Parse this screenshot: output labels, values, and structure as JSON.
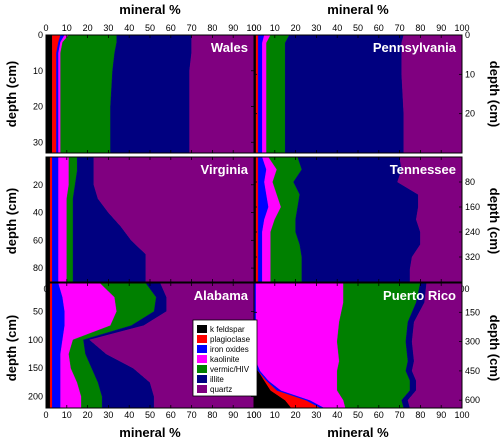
{
  "labels": {
    "mineral": "mineral %",
    "depth": "depth (cm)"
  },
  "chart_data": [
    {
      "type": "area",
      "title": "Wales",
      "xlabel": "mineral %",
      "ylabel": "depth (cm)",
      "xlim": [
        0,
        100
      ],
      "ylim": [
        33,
        0
      ],
      "x_ticks": [
        0,
        10,
        20,
        30,
        40,
        50,
        60,
        70,
        80,
        90,
        100
      ],
      "y_ticks": [
        0,
        10,
        20,
        30
      ],
      "depths": [
        0,
        2,
        5,
        10,
        20,
        30,
        33
      ],
      "series": [
        {
          "name": "k feldspar",
          "values": [
            3,
            3,
            3,
            3,
            3,
            3,
            3
          ]
        },
        {
          "name": "plagioclase",
          "values": [
            4,
            3,
            2,
            2,
            2,
            2,
            2
          ]
        },
        {
          "name": "iron oxides",
          "values": [
            2,
            1,
            1,
            1,
            1,
            1,
            1
          ]
        },
        {
          "name": "kaolinite",
          "values": [
            2,
            1,
            1,
            1,
            1,
            1,
            1
          ]
        },
        {
          "name": "vermic/HIV",
          "values": [
            23,
            26,
            26,
            25,
            24,
            24,
            24
          ]
        },
        {
          "name": "illite",
          "values": [
            36,
            36,
            37,
            37,
            38,
            38,
            38
          ]
        },
        {
          "name": "quartz",
          "values": [
            30,
            30,
            30,
            31,
            31,
            31,
            31
          ]
        }
      ]
    },
    {
      "type": "area",
      "title": "Pennsylvania",
      "xlabel": "mineral %",
      "ylabel": "depth (cm)",
      "xlim": [
        0,
        100
      ],
      "ylim": [
        30,
        0
      ],
      "x_ticks": [
        0,
        10,
        20,
        30,
        40,
        50,
        60,
        70,
        80,
        90,
        100
      ],
      "y_ticks": [
        0,
        10,
        20
      ],
      "depths": [
        0,
        2,
        5,
        10,
        20,
        30
      ],
      "series": [
        {
          "name": "k feldspar",
          "values": [
            1,
            1,
            1,
            1,
            1,
            1
          ]
        },
        {
          "name": "plagioclase",
          "values": [
            1,
            1,
            1,
            1,
            1,
            1
          ]
        },
        {
          "name": "iron oxides",
          "values": [
            3,
            2,
            2,
            2,
            2,
            2
          ]
        },
        {
          "name": "kaolinite",
          "values": [
            3,
            2,
            2,
            2,
            2,
            2
          ]
        },
        {
          "name": "vermic/HIV",
          "values": [
            9,
            9,
            9,
            9,
            9,
            9
          ]
        },
        {
          "name": "illite",
          "values": [
            55,
            56,
            56,
            56,
            57,
            57
          ]
        },
        {
          "name": "quartz",
          "values": [
            28,
            29,
            29,
            29,
            28,
            28
          ]
        }
      ]
    },
    {
      "type": "area",
      "title": "Virginia",
      "xlabel": "mineral %",
      "ylabel": "depth (cm)",
      "xlim": [
        0,
        100
      ],
      "ylim": [
        90,
        0
      ],
      "x_ticks": [
        0,
        10,
        20,
        30,
        40,
        50,
        60,
        70,
        80,
        90,
        100
      ],
      "y_ticks": [
        20,
        40,
        60,
        80
      ],
      "depths": [
        0,
        10,
        20,
        30,
        40,
        50,
        60,
        70,
        80,
        90
      ],
      "series": [
        {
          "name": "k feldspar",
          "values": [
            2,
            2,
            2,
            2,
            2,
            2,
            2,
            2,
            2,
            2
          ]
        },
        {
          "name": "plagioclase",
          "values": [
            1,
            1,
            1,
            1,
            1,
            1,
            1,
            1,
            1,
            1
          ]
        },
        {
          "name": "iron oxides",
          "values": [
            3,
            3,
            3,
            3,
            3,
            3,
            3,
            3,
            3,
            3
          ]
        },
        {
          "name": "kaolinite",
          "values": [
            5,
            5,
            5,
            4,
            4,
            4,
            4,
            4,
            4,
            4
          ]
        },
        {
          "name": "vermic/HIV",
          "values": [
            4,
            4,
            3,
            3,
            3,
            3,
            3,
            3,
            3,
            3
          ]
        },
        {
          "name": "illite",
          "values": [
            8,
            8,
            9,
            12,
            17,
            23,
            28,
            35,
            35,
            35
          ]
        },
        {
          "name": "quartz",
          "values": [
            77,
            77,
            77,
            75,
            70,
            64,
            59,
            52,
            52,
            52
          ]
        }
      ]
    },
    {
      "type": "area",
      "title": "Tennessee",
      "xlabel": "mineral %",
      "ylabel": "depth (cm)",
      "xlim": [
        0,
        100
      ],
      "ylim": [
        400,
        0
      ],
      "x_ticks": [
        0,
        10,
        20,
        30,
        40,
        50,
        60,
        70,
        80,
        90,
        100
      ],
      "y_ticks": [
        80,
        160,
        240,
        320
      ],
      "depths": [
        0,
        40,
        80,
        120,
        160,
        200,
        240,
        280,
        320,
        360,
        400
      ],
      "series": [
        {
          "name": "k feldspar",
          "values": [
            1,
            1,
            1,
            1,
            1,
            1,
            1,
            1,
            1,
            1,
            1
          ]
        },
        {
          "name": "plagioclase",
          "values": [
            1,
            1,
            1,
            1,
            1,
            1,
            1,
            1,
            1,
            1,
            1
          ]
        },
        {
          "name": "iron oxides",
          "values": [
            2,
            4,
            3,
            4,
            5,
            3,
            2,
            2,
            2,
            2,
            2
          ]
        },
        {
          "name": "kaolinite",
          "values": [
            3,
            5,
            4,
            5,
            6,
            5,
            4,
            4,
            4,
            4,
            4
          ]
        },
        {
          "name": "vermic/HIV",
          "values": [
            14,
            12,
            10,
            11,
            8,
            10,
            12,
            14,
            15,
            15,
            15
          ]
        },
        {
          "name": "illite",
          "values": [
            49,
            48,
            50,
            57,
            58,
            58,
            60,
            58,
            53,
            52,
            52
          ]
        },
        {
          "name": "quartz",
          "values": [
            30,
            29,
            31,
            21,
            21,
            22,
            20,
            20,
            24,
            25,
            25
          ]
        }
      ]
    },
    {
      "type": "area",
      "title": "Alabama",
      "xlabel": "mineral %",
      "ylabel": "depth (cm)",
      "xlim": [
        0,
        100
      ],
      "ylim": [
        220,
        0
      ],
      "x_ticks": [
        0,
        10,
        20,
        30,
        40,
        50,
        60,
        70,
        80,
        90,
        100
      ],
      "y_ticks": [
        50,
        100,
        150,
        200
      ],
      "depths": [
        0,
        25,
        50,
        75,
        100,
        125,
        150,
        175,
        200,
        220
      ],
      "series": [
        {
          "name": "k feldspar",
          "values": [
            2,
            2,
            2,
            2,
            2,
            2,
            2,
            2,
            2,
            2
          ]
        },
        {
          "name": "plagioclase",
          "values": [
            1,
            1,
            1,
            1,
            1,
            1,
            1,
            1,
            1,
            1
          ]
        },
        {
          "name": "iron oxides",
          "values": [
            3,
            5,
            6,
            6,
            5,
            4,
            4,
            4,
            4,
            4
          ]
        },
        {
          "name": "kaolinite",
          "values": [
            20,
            25,
            25,
            22,
            5,
            4,
            5,
            8,
            10,
            10
          ]
        },
        {
          "name": "vermic/HIV",
          "values": [
            22,
            20,
            18,
            10,
            5,
            8,
            10,
            10,
            10,
            10
          ]
        },
        {
          "name": "illite",
          "values": [
            7,
            5,
            6,
            6,
            3,
            10,
            20,
            25,
            25,
            25
          ]
        },
        {
          "name": "quartz",
          "values": [
            45,
            42,
            42,
            53,
            79,
            71,
            58,
            50,
            48,
            48
          ]
        }
      ]
    },
    {
      "type": "area",
      "title": "Puerto Rico",
      "xlabel": "mineral %",
      "ylabel": "depth (cm)",
      "xlim": [
        0,
        100
      ],
      "ylim": [
        640,
        0
      ],
      "x_ticks": [
        0,
        10,
        20,
        30,
        40,
        50,
        60,
        70,
        80,
        90,
        100
      ],
      "y_ticks": [
        150,
        300,
        450,
        600
      ],
      "depths": [
        0,
        100,
        200,
        300,
        400,
        450,
        500,
        550,
        600,
        640
      ],
      "series": [
        {
          "name": "k feldspar",
          "values": [
            0,
            0,
            0,
            0,
            0,
            2,
            5,
            8,
            15,
            18
          ]
        },
        {
          "name": "plagioclase",
          "values": [
            0,
            0,
            0,
            0,
            0,
            0,
            1,
            3,
            10,
            14
          ]
        },
        {
          "name": "iron oxides",
          "values": [
            1,
            1,
            1,
            1,
            1,
            1,
            1,
            2,
            2,
            2
          ]
        },
        {
          "name": "kaolinite",
          "values": [
            42,
            42,
            40,
            39,
            40,
            37,
            33,
            27,
            16,
            10
          ]
        },
        {
          "name": "vermic/HIV",
          "values": [
            37,
            35,
            33,
            33,
            33,
            33,
            35,
            35,
            28,
            28
          ]
        },
        {
          "name": "illite",
          "values": [
            3,
            4,
            3,
            3,
            3,
            3,
            3,
            3,
            3,
            3
          ]
        },
        {
          "name": "quartz",
          "values": [
            17,
            18,
            23,
            24,
            23,
            24,
            22,
            22,
            26,
            25
          ]
        }
      ]
    }
  ],
  "legend": {
    "placement": "bottom-center",
    "items": [
      {
        "name": "k feldspar",
        "color": "#000000"
      },
      {
        "name": "plagioclase",
        "color": "#ff0000"
      },
      {
        "name": "iron oxides",
        "color": "#0000ff"
      },
      {
        "name": "kaolinite",
        "color": "#ff00ff"
      },
      {
        "name": "vermic/HIV",
        "color": "#008000"
      },
      {
        "name": "illite",
        "color": "#000080"
      },
      {
        "name": "quartz",
        "color": "#800080"
      }
    ]
  },
  "colors": {
    "k feldspar": "#000000",
    "plagioclase": "#ff0000",
    "iron oxides": "#0000ff",
    "kaolinite": "#ff00ff",
    "vermic/HIV": "#008000",
    "illite": "#000080",
    "quartz": "#800080"
  }
}
